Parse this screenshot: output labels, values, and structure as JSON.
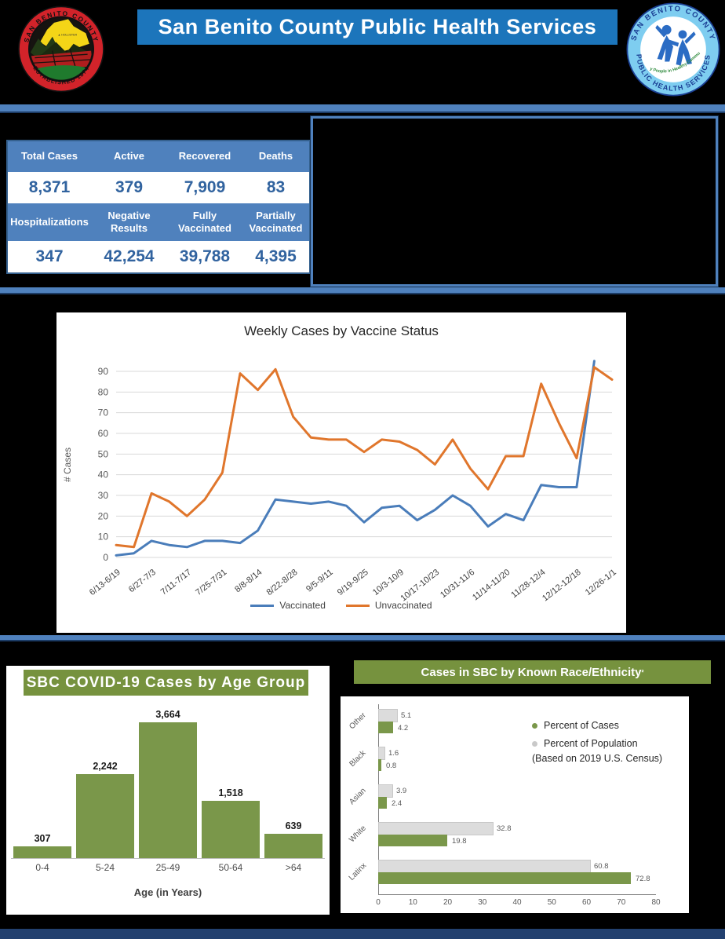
{
  "header": {
    "title": "San Benito County Public Health Services",
    "left_logo": {
      "arc_top": "SAN BENITO COUNTY",
      "arc_bottom": "ESTABLISHED 1874",
      "place_label": "HOLLISTER"
    },
    "right_logo": {
      "arc_top": "SAN BENITO COUNTY",
      "arc_bottom": "PUBLIC HEALTH SERVICES",
      "center_text": "Healthy People in Healthy Communities"
    }
  },
  "stats": {
    "row1": [
      {
        "label": "Total Cases",
        "value": "8,371"
      },
      {
        "label": "Active",
        "value": "379"
      },
      {
        "label": "Recovered",
        "value": "7,909"
      },
      {
        "label": "Deaths",
        "value": "83"
      }
    ],
    "row2": [
      {
        "label": "Hospitalizations",
        "value": "347"
      },
      {
        "label": "Negative Results",
        "value": "42,254"
      },
      {
        "label": "Fully Vaccinated",
        "value": "39,788"
      },
      {
        "label": "Partially Vaccinated",
        "value": "4,395"
      }
    ]
  },
  "chart_data": [
    {
      "id": "weekly_cases_by_vaccine_status",
      "type": "line",
      "title": "Weekly Cases by Vaccine Status",
      "ylabel": "# Cases",
      "ylim": [
        0,
        90
      ],
      "ytick_step": 10,
      "grid": true,
      "legend_position": "bottom",
      "x_labels_shown": [
        "6/13-6/19",
        "6/27-7/3",
        "7/11-7/17",
        "7/25-7/31",
        "8/8-8/14",
        "8/22-8/28",
        "9/5-9/11",
        "9/19-9/25",
        "10/3-10/9",
        "10/17-10/23",
        "10/31-11/6",
        "11/14-11/20",
        "11/28-12/4",
        "12/12-12/18",
        "12/26-1/1"
      ],
      "series": [
        {
          "name": "Vaccinated",
          "color": "#4a7dba",
          "values": [
            1,
            2,
            8,
            6,
            5,
            8,
            8,
            7,
            13,
            28,
            27,
            26,
            27,
            25,
            17,
            24,
            25,
            18,
            23,
            30,
            25,
            15,
            21,
            18,
            35,
            34,
            34,
            95,
            null
          ]
        },
        {
          "name": "Unvaccinated",
          "color": "#e0762c",
          "values": [
            6,
            5,
            31,
            27,
            20,
            28,
            41,
            89,
            81,
            91,
            68,
            58,
            57,
            57,
            51,
            57,
            56,
            52,
            45,
            57,
            43,
            33,
            49,
            49,
            84,
            65,
            48,
            92,
            86
          ]
        }
      ]
    },
    {
      "id": "cases_by_age_group",
      "type": "bar",
      "title": "SBC COVID-19 Cases by Age Group",
      "xlabel": "Age (in Years)",
      "categories": [
        "0-4",
        "5-24",
        "25-49",
        "50-64",
        ">64"
      ],
      "values": [
        307,
        2242,
        3664,
        1518,
        639
      ],
      "value_labels": [
        "307",
        "2,242",
        "3,664",
        "1,518",
        "639"
      ],
      "bar_color": "#7a974a",
      "ymax": 3664
    },
    {
      "id": "cases_by_race_ethnicity",
      "type": "bar-horizontal",
      "title": "Cases in SBC by Known Race/Ethnicity",
      "title_superscript": "²",
      "categories": [
        "Other",
        "Black",
        "Asian",
        "White",
        "Latinx"
      ],
      "series": [
        {
          "name": "Percent of Cases",
          "color": "#7a974a",
          "values": [
            4.2,
            0.8,
            2.4,
            19.8,
            72.8
          ]
        },
        {
          "name": "Percent of Population",
          "color": "#dcdcdc",
          "values": [
            5.1,
            1.6,
            3.9,
            32.8,
            60.8
          ]
        }
      ],
      "legend_note": "(Based on 2019 U.S. Census)",
      "xlim": [
        0,
        80
      ],
      "xticks": [
        0,
        10,
        20,
        30,
        40,
        50,
        60,
        70,
        80
      ]
    }
  ]
}
